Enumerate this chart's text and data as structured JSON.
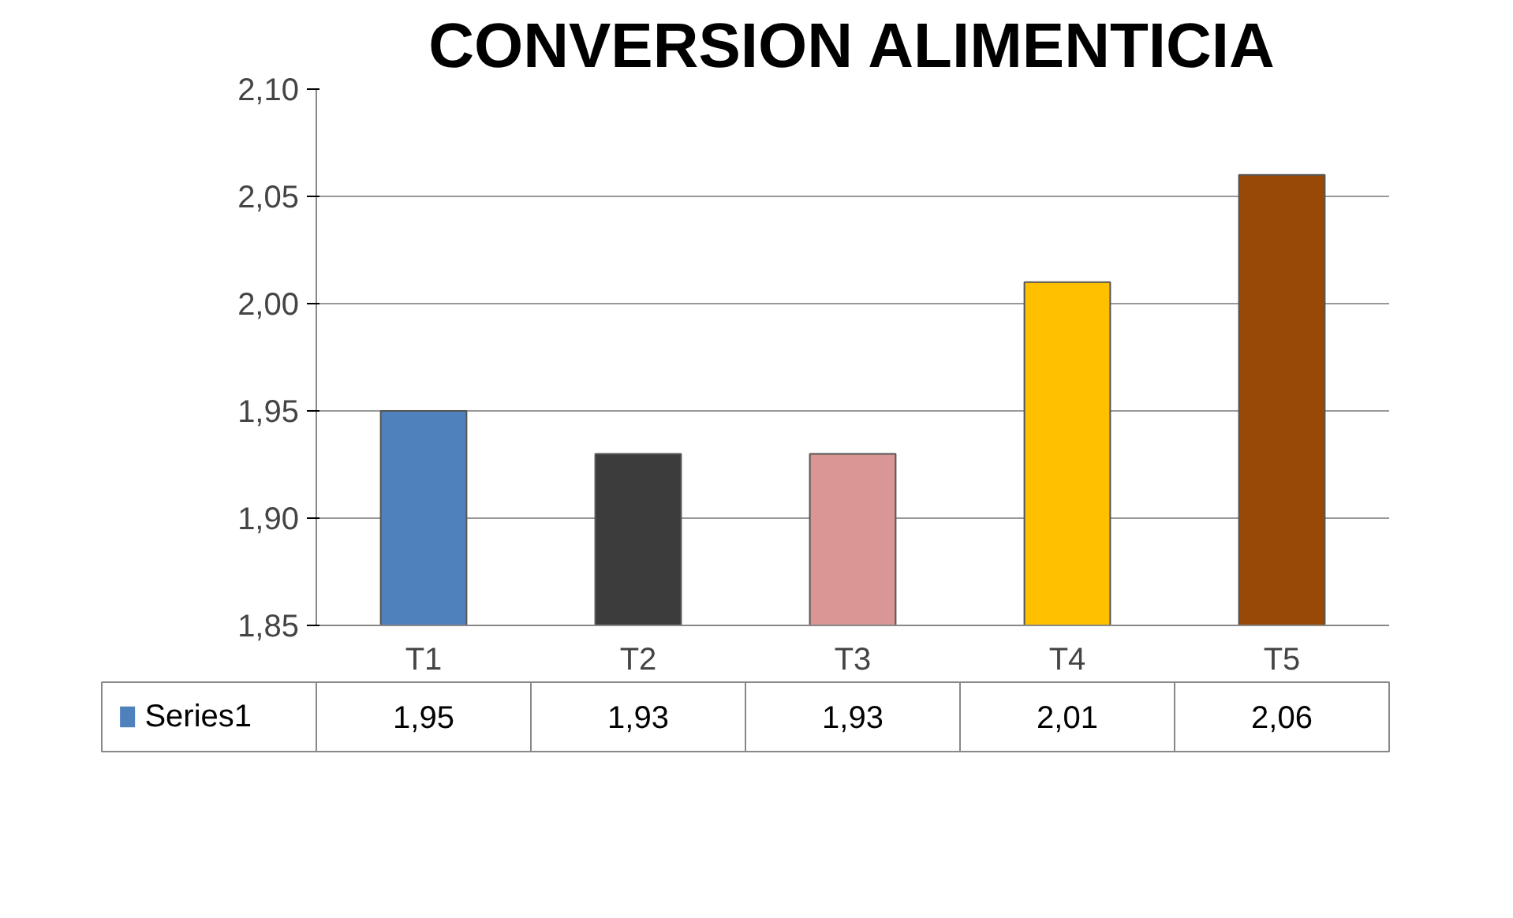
{
  "chart_data": {
    "type": "bar",
    "title": "CONVERSION ALIMENTICIA",
    "categories": [
      "T1",
      "T2",
      "T3",
      "T4",
      "T5"
    ],
    "series": [
      {
        "name": "Series1",
        "colors": [
          "#4f81bd",
          "#3c3c3c",
          "#d99694",
          "#ffc000",
          "#984807"
        ],
        "values": [
          1.95,
          1.93,
          1.93,
          2.01,
          2.06
        ],
        "value_labels": [
          "1,95",
          "1,93",
          "1,93",
          "2,01",
          "2,06"
        ]
      }
    ],
    "ylim": [
      1.85,
      2.1
    ],
    "yticks": [
      {
        "value": 1.85,
        "label": "1,85"
      },
      {
        "value": 1.9,
        "label": "1,90"
      },
      {
        "value": 1.95,
        "label": "1,95"
      },
      {
        "value": 2.0,
        "label": "2,00"
      },
      {
        "value": 2.05,
        "label": "2,05"
      },
      {
        "value": 2.1,
        "label": "2,10"
      }
    ],
    "grid": "y",
    "legend": "bottom"
  }
}
